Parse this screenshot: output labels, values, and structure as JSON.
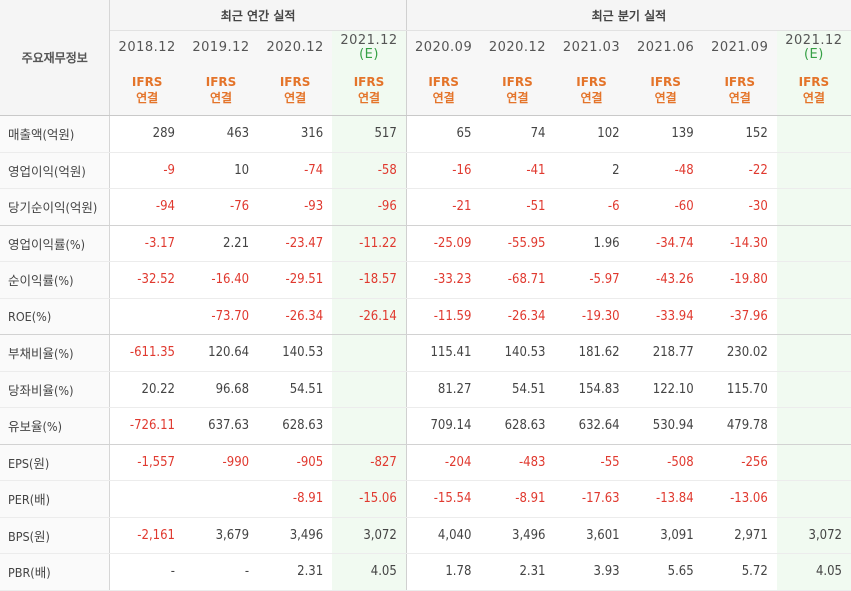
{
  "header": {
    "row_label": "주요재무정보",
    "annual_title": "최근 연간 실적",
    "quarterly_title": "최근 분기 실적"
  },
  "columns": [
    {
      "period": "2018.12",
      "estimate": "",
      "ifrs": "IFRS",
      "basis": "연결",
      "group": "annual"
    },
    {
      "period": "2019.12",
      "estimate": "",
      "ifrs": "IFRS",
      "basis": "연결",
      "group": "annual"
    },
    {
      "period": "2020.12",
      "estimate": "",
      "ifrs": "IFRS",
      "basis": "연결",
      "group": "annual"
    },
    {
      "period": "2021.12",
      "estimate": "(E)",
      "ifrs": "IFRS",
      "basis": "연결",
      "group": "annual"
    },
    {
      "period": "2020.09",
      "estimate": "",
      "ifrs": "IFRS",
      "basis": "연결",
      "group": "quarterly"
    },
    {
      "period": "2020.12",
      "estimate": "",
      "ifrs": "IFRS",
      "basis": "연결",
      "group": "quarterly"
    },
    {
      "period": "2021.03",
      "estimate": "",
      "ifrs": "IFRS",
      "basis": "연결",
      "group": "quarterly"
    },
    {
      "period": "2021.06",
      "estimate": "",
      "ifrs": "IFRS",
      "basis": "연결",
      "group": "quarterly"
    },
    {
      "period": "2021.09",
      "estimate": "",
      "ifrs": "IFRS",
      "basis": "연결",
      "group": "quarterly"
    },
    {
      "period": "2021.12",
      "estimate": "(E)",
      "ifrs": "IFRS",
      "basis": "연결",
      "group": "quarterly"
    }
  ],
  "rows": [
    {
      "label": "매출액(억원)",
      "values": [
        "289",
        "463",
        "316",
        "517",
        "65",
        "74",
        "102",
        "139",
        "152",
        ""
      ]
    },
    {
      "label": "영업이익(억원)",
      "values": [
        "-9",
        "10",
        "-74",
        "-58",
        "-16",
        "-41",
        "2",
        "-48",
        "-22",
        ""
      ]
    },
    {
      "label": "당기순이익(억원)",
      "values": [
        "-94",
        "-76",
        "-93",
        "-96",
        "-21",
        "-51",
        "-6",
        "-60",
        "-30",
        ""
      ],
      "group_end": true
    },
    {
      "label": "영업이익률(%)",
      "values": [
        "-3.17",
        "2.21",
        "-23.47",
        "-11.22",
        "-25.09",
        "-55.95",
        "1.96",
        "-34.74",
        "-14.30",
        ""
      ]
    },
    {
      "label": "순이익률(%)",
      "values": [
        "-32.52",
        "-16.40",
        "-29.51",
        "-18.57",
        "-33.23",
        "-68.71",
        "-5.97",
        "-43.26",
        "-19.80",
        ""
      ]
    },
    {
      "label": "ROE(%)",
      "values": [
        "",
        "-73.70",
        "-26.34",
        "-26.14",
        "-11.59",
        "-26.34",
        "-19.30",
        "-33.94",
        "-37.96",
        ""
      ],
      "group_end": true
    },
    {
      "label": "부채비율(%)",
      "values": [
        "-611.35",
        "120.64",
        "140.53",
        "",
        "115.41",
        "140.53",
        "181.62",
        "218.77",
        "230.02",
        ""
      ]
    },
    {
      "label": "당좌비율(%)",
      "values": [
        "20.22",
        "96.68",
        "54.51",
        "",
        "81.27",
        "54.51",
        "154.83",
        "122.10",
        "115.70",
        ""
      ]
    },
    {
      "label": "유보율(%)",
      "values": [
        "-726.11",
        "637.63",
        "628.63",
        "",
        "709.14",
        "628.63",
        "632.64",
        "530.94",
        "479.78",
        ""
      ],
      "group_end": true
    },
    {
      "label": "EPS(원)",
      "values": [
        "-1,557",
        "-990",
        "-905",
        "-827",
        "-204",
        "-483",
        "-55",
        "-508",
        "-256",
        ""
      ]
    },
    {
      "label": "PER(배)",
      "values": [
        "",
        "",
        "-8.91",
        "-15.06",
        "-15.54",
        "-8.91",
        "-17.63",
        "-13.84",
        "-13.06",
        ""
      ]
    },
    {
      "label": "BPS(원)",
      "values": [
        "-2,161",
        "3,679",
        "3,496",
        "3,072",
        "4,040",
        "3,496",
        "3,601",
        "3,091",
        "2,971",
        "3,072"
      ]
    },
    {
      "label": "PBR(배)",
      "values": [
        "-",
        "-",
        "2.31",
        "4.05",
        "1.78",
        "2.31",
        "3.93",
        "5.65",
        "5.72",
        "4.05"
      ]
    }
  ],
  "colors": {
    "negative": "#e0392f",
    "ifrs": "#e4742a",
    "estimate_mark": "#35a045",
    "estimate_bg": "#f1faf1"
  }
}
